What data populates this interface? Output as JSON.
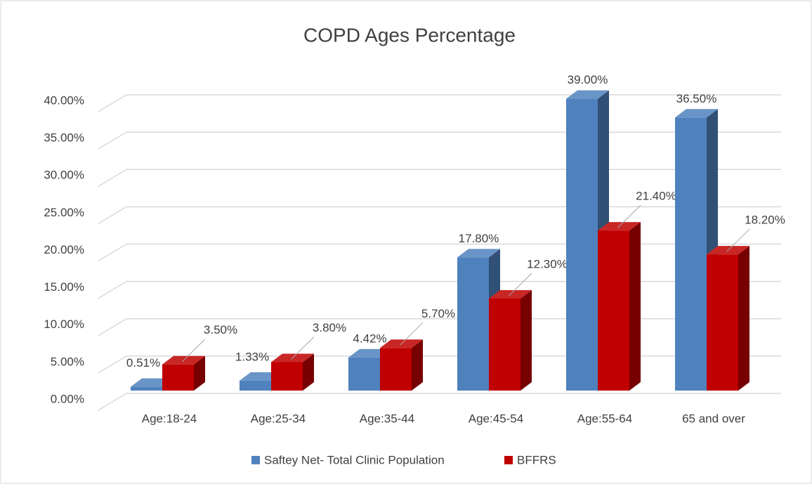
{
  "chart_data": {
    "type": "bar3d",
    "title": "COPD Ages Percentage",
    "categories": [
      "Age:18-24",
      "Age:25-34",
      "Age:35-44",
      "Age:45-54",
      "Age:55-64",
      "65 and over"
    ],
    "series": [
      {
        "name": "Saftey Net- Total Clinic Population",
        "color": "#4f81bd",
        "values": [
          0.51,
          1.33,
          4.42,
          17.8,
          39.0,
          36.5
        ],
        "value_labels": [
          "0.51%",
          "1.33%",
          "4.42%",
          "17.80%",
          "39.00%",
          "36.50%"
        ]
      },
      {
        "name": "BFFRS",
        "color": "#c00000",
        "values": [
          3.5,
          3.8,
          5.7,
          12.3,
          21.4,
          18.2
        ],
        "value_labels": [
          "3.50%",
          "3.80%",
          "5.70%",
          "12.30%",
          "21.40%",
          "18.20%"
        ]
      }
    ],
    "ylim": [
      0,
      40
    ],
    "yticks": [
      {
        "value": 0,
        "label": "0.00%"
      },
      {
        "value": 5,
        "label": "5.00%"
      },
      {
        "value": 10,
        "label": "10.00%"
      },
      {
        "value": 15,
        "label": "15.00%"
      },
      {
        "value": 20,
        "label": "20.00%"
      },
      {
        "value": 25,
        "label": "25.00%"
      },
      {
        "value": 30,
        "label": "30.00%"
      },
      {
        "value": 35,
        "label": "35.00%"
      },
      {
        "value": 40,
        "label": "40.00%"
      }
    ],
    "grid": true,
    "legend": "bottom"
  }
}
